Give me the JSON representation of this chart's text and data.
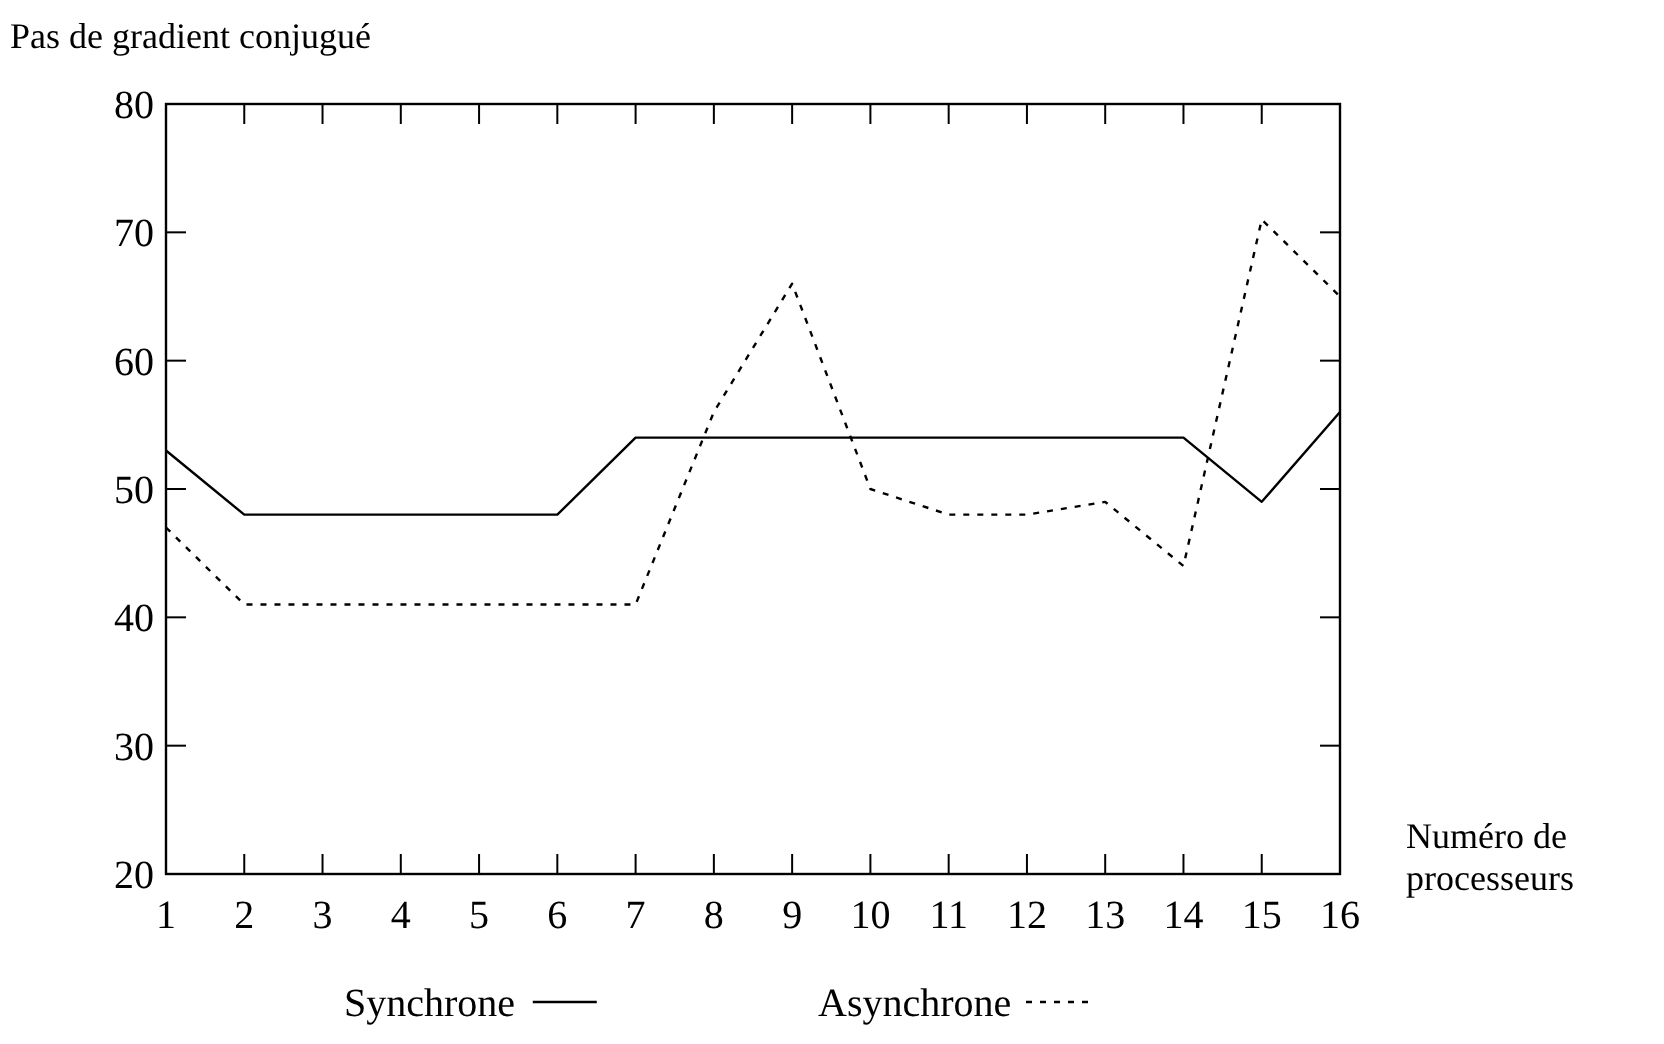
{
  "chart_data": {
    "type": "line",
    "ylabel": "Pas de gradient conjugué",
    "xlabel": "Numéro de processeurs",
    "x": [
      1,
      2,
      3,
      4,
      5,
      6,
      7,
      8,
      9,
      10,
      11,
      12,
      13,
      14,
      15,
      16
    ],
    "xlim": [
      1,
      16
    ],
    "xticks": [
      1,
      2,
      3,
      4,
      5,
      6,
      7,
      8,
      9,
      10,
      11,
      12,
      13,
      14,
      15,
      16
    ],
    "ylim": [
      20,
      80
    ],
    "yticks": [
      20,
      30,
      40,
      50,
      60,
      70,
      80
    ],
    "grid": false,
    "legend": "bottom",
    "series": [
      {
        "name": "Synchrone",
        "color": "#000000",
        "line_style": "solid",
        "values": [
          53,
          48,
          48,
          48,
          48,
          48,
          54,
          54,
          54,
          54,
          54,
          54,
          54,
          54,
          49,
          56
        ]
      },
      {
        "name": "Asynchrone",
        "color": "#000000",
        "line_style": "dotted",
        "values": [
          47,
          41,
          41,
          41,
          41,
          41,
          41,
          56,
          66,
          50,
          48,
          48,
          49,
          44,
          71,
          65
        ]
      }
    ]
  }
}
